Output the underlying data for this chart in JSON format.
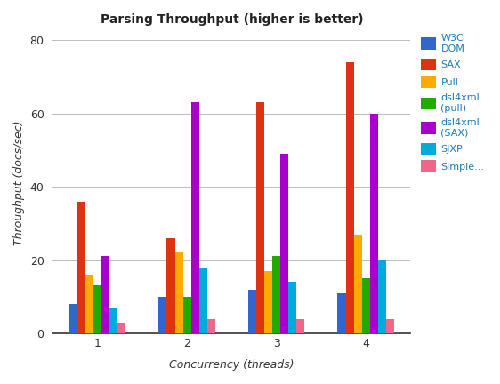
{
  "title": "Parsing Throughput (higher is better)",
  "xlabel": "Concurrency (threads)",
  "ylabel": "Throughput (docs/sec)",
  "concurrency": [
    1,
    2,
    3,
    4
  ],
  "series": [
    {
      "label": "W3C\nDOM",
      "color": "#3366cc",
      "values": [
        8,
        10,
        12,
        11
      ]
    },
    {
      "label": "SAX",
      "color": "#dd3311",
      "values": [
        36,
        26,
        63,
        74
      ]
    },
    {
      "label": "Pull",
      "color": "#ffaa00",
      "values": [
        16,
        22,
        17,
        27
      ]
    },
    {
      "label": "dsl4xml\n(pull)",
      "color": "#22aa00",
      "values": [
        13,
        10,
        21,
        15
      ]
    },
    {
      "label": "dsl4xml\n(SAX)",
      "color": "#aa00cc",
      "values": [
        21,
        63,
        49,
        60
      ]
    },
    {
      "label": "SJXP",
      "color": "#00aadd",
      "values": [
        7,
        18,
        14,
        20
      ]
    },
    {
      "label": "Simple...",
      "color": "#ee6688",
      "values": [
        3,
        4,
        4,
        4
      ]
    }
  ],
  "ylim": [
    0,
    82
  ],
  "yticks": [
    0,
    20,
    40,
    60,
    80
  ],
  "background_color": "#ffffff",
  "grid_color": "#bbbbbb",
  "figsize": [
    5.62,
    4.32
  ],
  "dpi": 100
}
